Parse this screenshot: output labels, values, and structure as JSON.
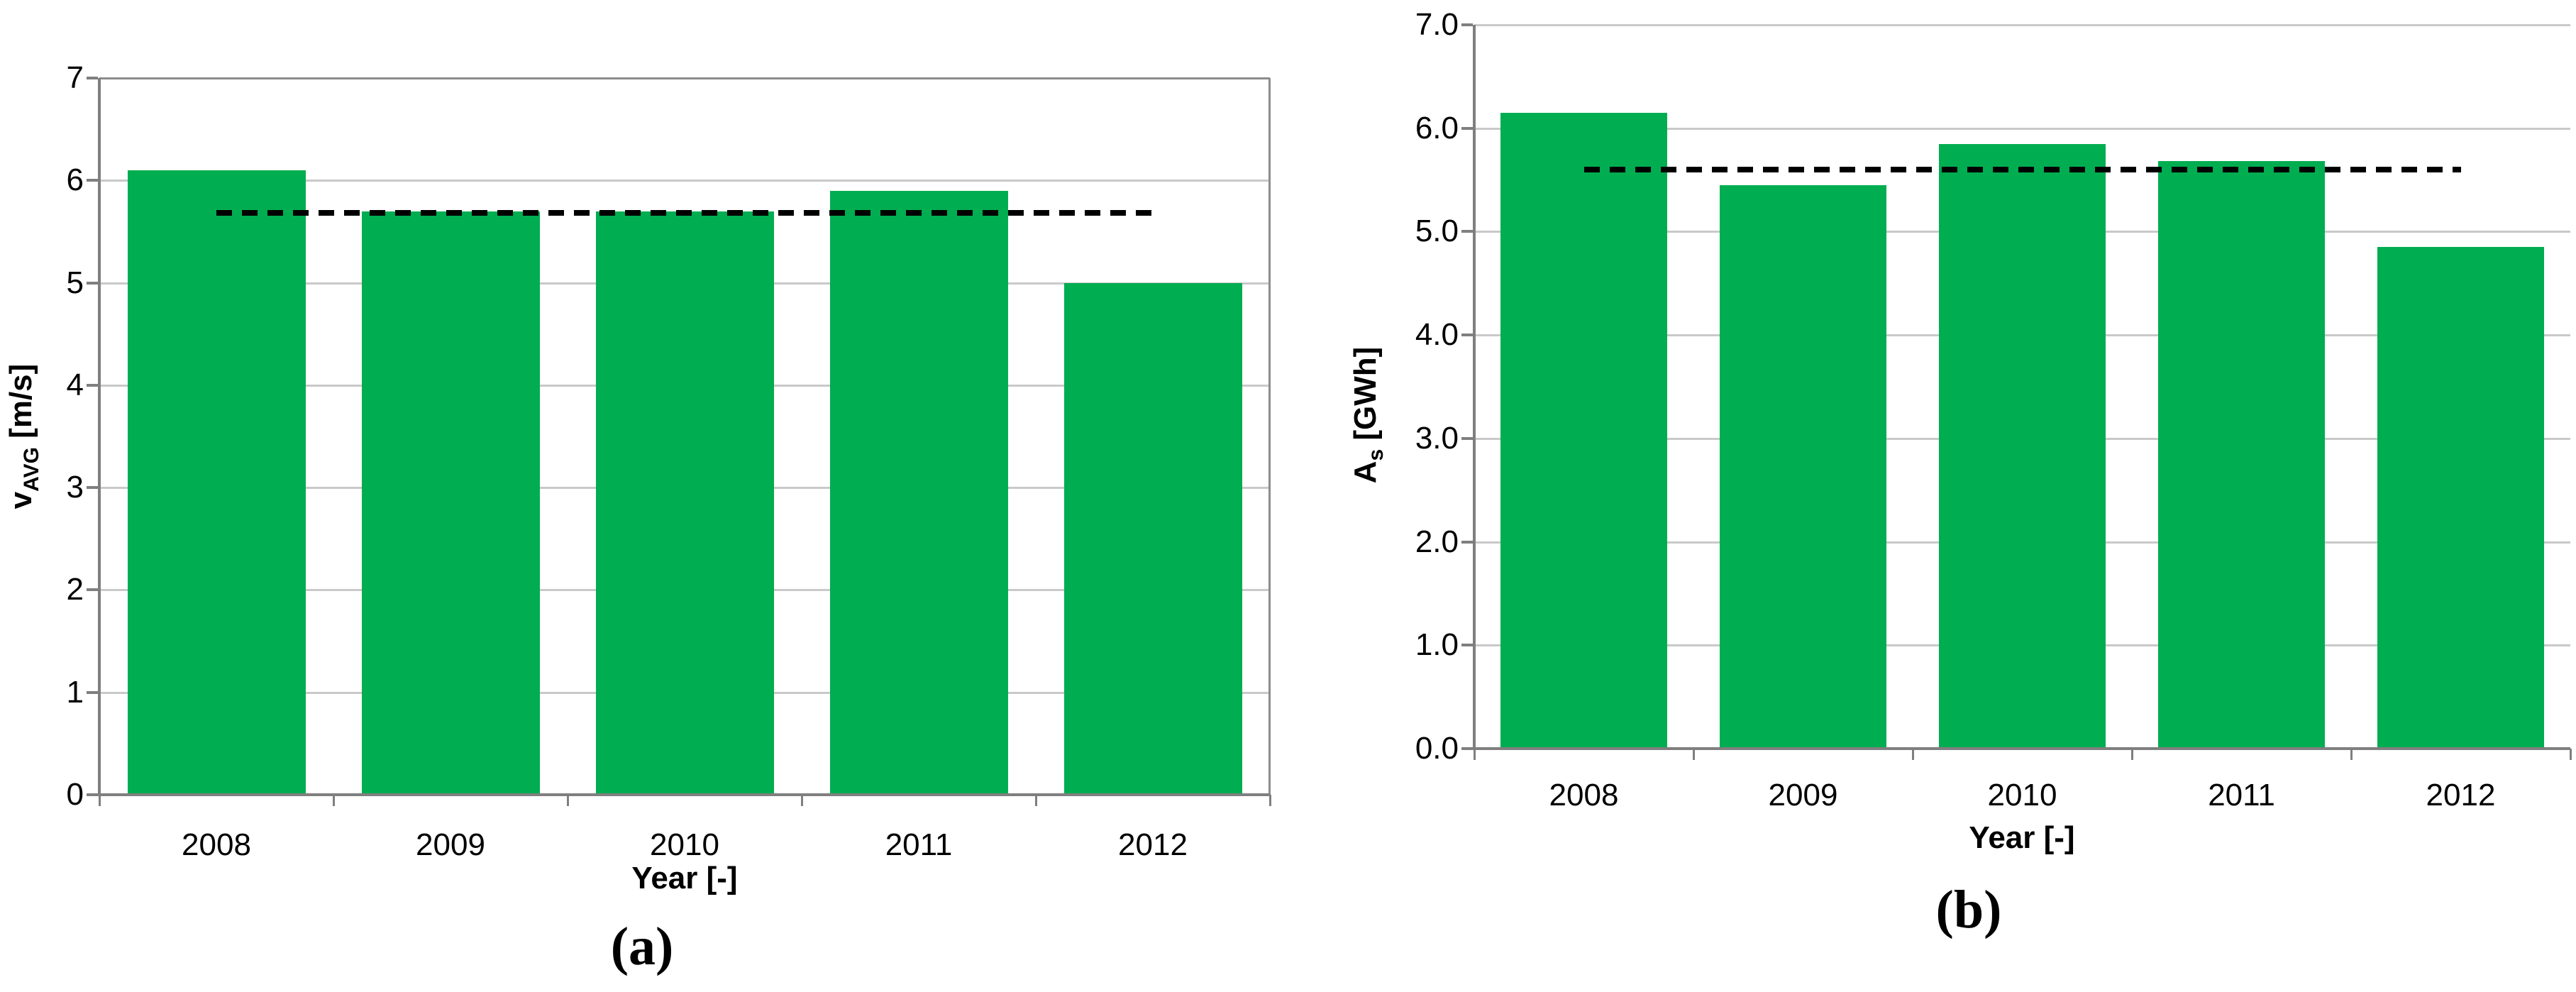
{
  "colors": {
    "bar": "#00AD50",
    "gridline": "#c9c9c9",
    "axis": "#7f7f7f",
    "plot_border": "#8c8c8c",
    "mean_line": "#000000",
    "text": "#000000"
  },
  "chart_data": [
    {
      "type": "bar",
      "caption": "(a)",
      "xlabel": "Year [-]",
      "ylabel": {
        "main": "v",
        "sub": "AVG",
        "unit": " [m/s]"
      },
      "categories": [
        "2008",
        "2009",
        "2010",
        "2011",
        "2012"
      ],
      "values": [
        6.1,
        5.7,
        5.7,
        5.9,
        5.0
      ],
      "mean_line_value": 5.68,
      "ylim": [
        0,
        7
      ],
      "yticks": [
        "0",
        "1",
        "2",
        "3",
        "4",
        "5",
        "6",
        "7"
      ],
      "grid": true,
      "legend": "none"
    },
    {
      "type": "bar",
      "caption": "(b)",
      "xlabel": "Year [-]",
      "ylabel": {
        "main": "A",
        "sub": "s",
        "unit": " [GWh]"
      },
      "categories": [
        "2008",
        "2009",
        "2010",
        "2011",
        "2012"
      ],
      "values": [
        6.15,
        5.45,
        5.85,
        5.68,
        4.85
      ],
      "mean_line_value": 5.6,
      "ylim": [
        0,
        7
      ],
      "yticks": [
        "0.0",
        "1.0",
        "2.0",
        "3.0",
        "4.0",
        "5.0",
        "6.0",
        "7.0"
      ],
      "grid": true,
      "legend": "none"
    }
  ]
}
